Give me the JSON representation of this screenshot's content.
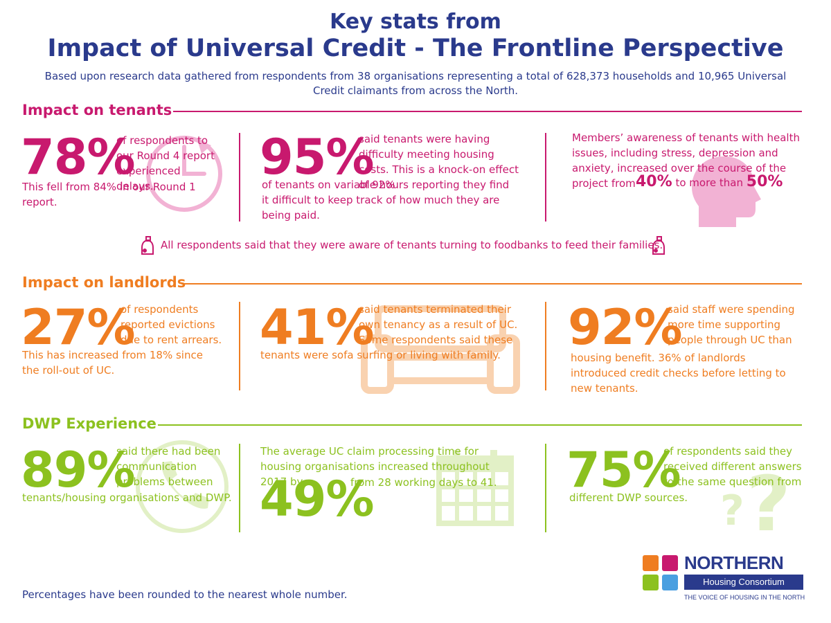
{
  "header": {
    "title_line1": "Key stats from",
    "title_line2": "Impact of Universal Credit - The Frontline Perspective",
    "intro": "Based upon research data gathered from respondents from 38 organisations representing a total of 628,373 households and 10,965 Universal Credit claimants from across the North."
  },
  "colors": {
    "tenants": "#c8196e",
    "landlords": "#ef7d21",
    "dwp": "#8cc11f",
    "navy": "#2a3a8c"
  },
  "tenants": {
    "heading": "Impact on tenants",
    "stat1": {
      "value": "78%",
      "text_side": "of respondents to our Round 4 report experienced delays.",
      "text_below": "This fell from 84% in our Round 1 report.",
      "icon": "clock-icon"
    },
    "stat2": {
      "value": "95%",
      "text_side": "said tenants were having difficulty meeting housing costs. This is a knock-on effect of 92%",
      "text_below": "of tenants on variable hours reporting they find it difficult to keep track of how much they are being paid."
    },
    "stat3": {
      "text": "Members’ awareness of tenants with health issues, including stress, depression and anxiety, increased over the course of the project from",
      "value_from": "40%",
      "connector": "to more than",
      "value_to": "50%",
      "icon": "head-icon"
    },
    "foodbank": {
      "text": "All respondents said that they were aware of tenants turning to foodbanks to feed their families.",
      "icon": "food-jar-icon"
    }
  },
  "landlords": {
    "heading": "Impact on landlords",
    "stat1": {
      "value": "27%",
      "text_side": "of respondents reported evictions due to rent arrears.",
      "text_below": "This has increased from 18% since the roll-out of UC."
    },
    "stat2": {
      "value": "41%",
      "text_side": "said tenants terminated their own tenancy as a result of UC. Some respondents said these",
      "text_below": "tenants were sofa surfing or living with family.",
      "icon": "sofa-icon"
    },
    "stat3": {
      "value": "92%",
      "text_side": "said staff were spending more time supporting people through UC than",
      "text_below": "housing benefit. 36% of landlords introduced credit checks before letting to new tenants."
    }
  },
  "dwp": {
    "heading": "DWP Experience",
    "stat1": {
      "value": "89%",
      "text_side": "said there had been communication problems between",
      "text_below": "tenants/housing organisations and DWP.",
      "icon": "phone-icon"
    },
    "stat2": {
      "text_top": "The average UC claim processing time for housing organisations increased throughout 2017 by",
      "value": "49%",
      "text_side": "from 28 working days to 41.",
      "icon": "calendar-icon"
    },
    "stat3": {
      "value": "75%",
      "text_side": "of respondents said they received different answers to the same question from",
      "text_below": "different DWP sources.",
      "icon": "question-icon"
    }
  },
  "footer": {
    "note": "Percentages have been rounded to the nearest whole number.",
    "logo": {
      "word1": "NORTHERN",
      "word2": "Housing Consortium",
      "tagline": "THE VOICE OF HOUSING IN THE NORTH",
      "squares": [
        "#ef7d21",
        "#c8196e",
        "#8cc11f",
        "#4a9fe0"
      ]
    }
  }
}
